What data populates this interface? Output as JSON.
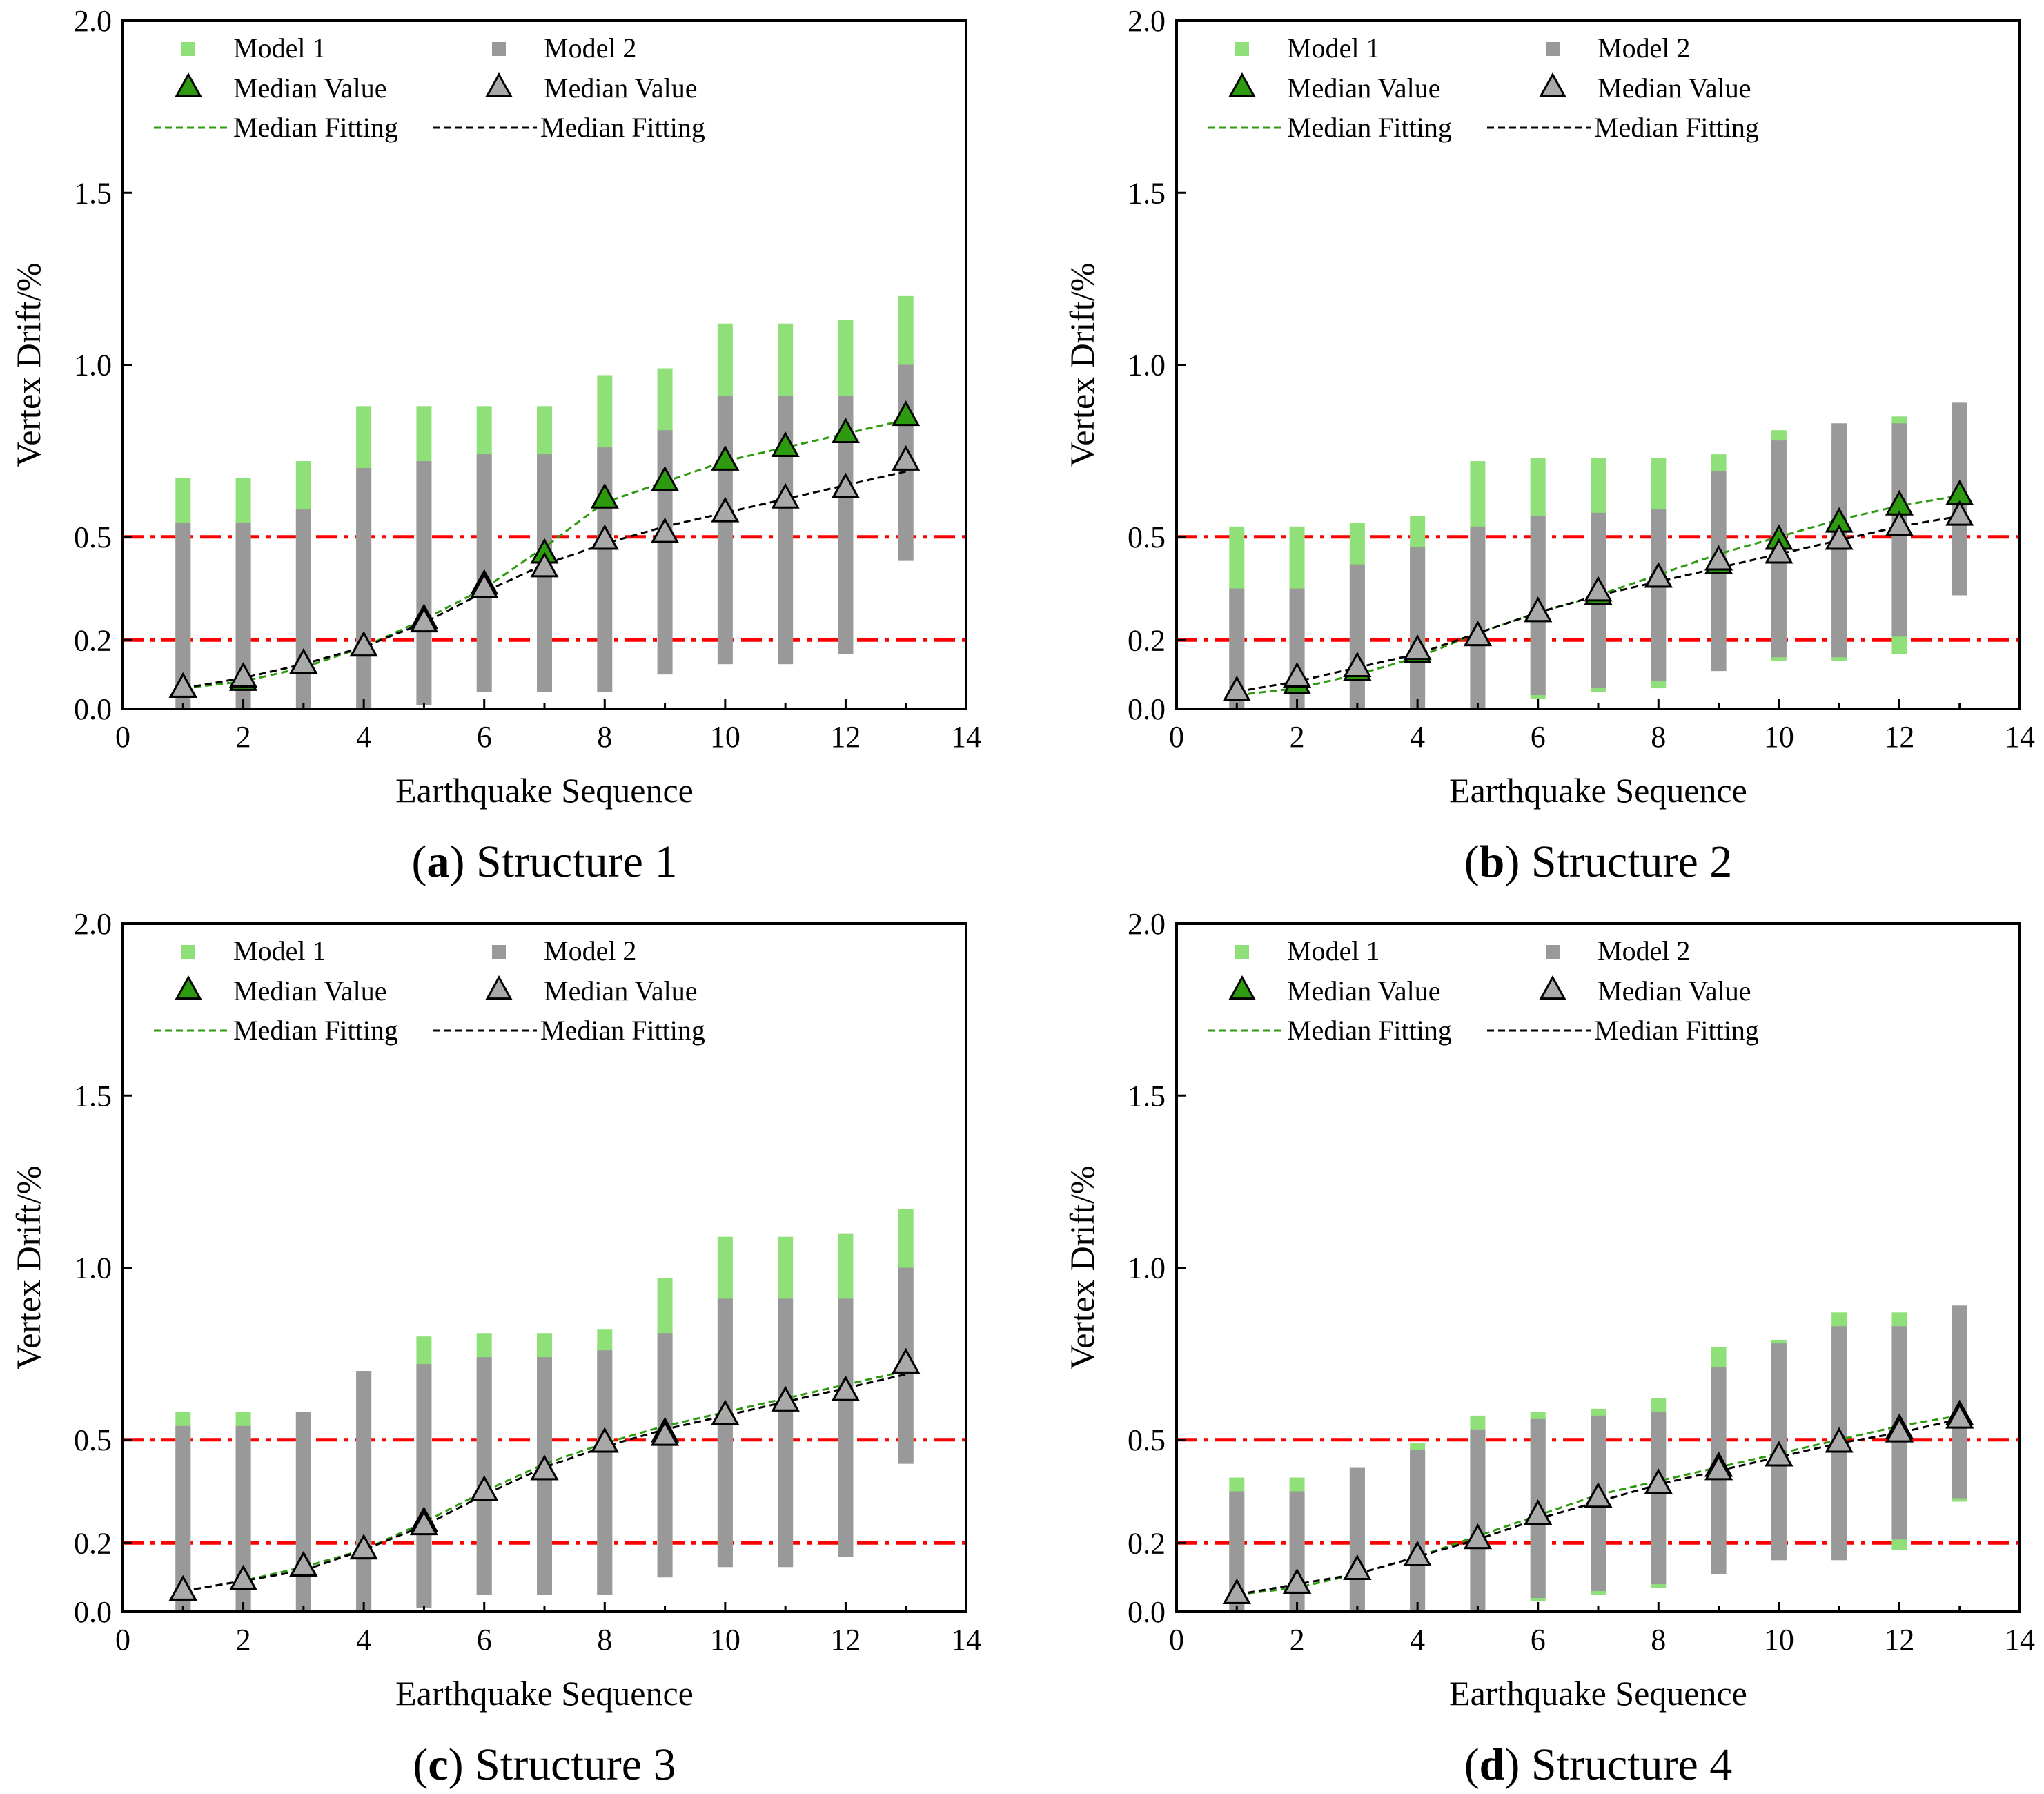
{
  "colors": {
    "model1": "#90E07A",
    "model2": "#999999",
    "median1_fill": "#2E9A10",
    "median2_fill": "#A9A9A9",
    "fit1": "#2E9A10",
    "fit2": "#000000",
    "limit_line": "#FF0000",
    "axis": "#000000"
  },
  "chart_data": [
    {
      "type": "scatter",
      "caption": {
        "letter": "a",
        "rest": " Structure 1",
        "open": "(",
        "close": ")"
      },
      "xlabel": "Earthquake Sequence",
      "ylabel": "Vertex Drift/%",
      "xlim": [
        0,
        14
      ],
      "ylim": [
        0,
        2.0
      ],
      "xticks": [
        "0",
        "2",
        "4",
        "6",
        "8",
        "10",
        "12",
        "14"
      ],
      "yticks": [
        "0.0",
        "0.2",
        "0.5",
        "1.0",
        "1.5",
        "2.0"
      ],
      "ytick_values": [
        0.0,
        0.2,
        0.5,
        1.0,
        1.5,
        2.0
      ],
      "reference_lines": [
        0.2,
        0.5
      ],
      "legend": {
        "model1": "Model 1",
        "model2": "Model 2",
        "median1": "Median Value",
        "median2": "Median Value",
        "fit1": "Median Fitting",
        "fit2": "Median Fitting"
      },
      "x": [
        1,
        2,
        3,
        4,
        5,
        6,
        7,
        8,
        9,
        10,
        11,
        12,
        13
      ],
      "model1_range": [
        [
          0.06,
          0.67
        ],
        [
          0.08,
          0.67
        ],
        [
          0.12,
          0.72
        ],
        [
          0.17,
          0.88
        ],
        [
          0.27,
          0.88
        ],
        [
          0.39,
          0.88
        ],
        [
          0.47,
          0.88
        ],
        [
          0.61,
          0.97
        ],
        [
          0.66,
          0.99
        ],
        [
          0.71,
          1.12
        ],
        [
          0.76,
          1.12
        ],
        [
          0.79,
          1.13
        ],
        [
          0.83,
          1.2
        ]
      ],
      "model2_range": [
        [
          0.0,
          0.54
        ],
        [
          0.0,
          0.54
        ],
        [
          0.0,
          0.58
        ],
        [
          0.0,
          0.7
        ],
        [
          0.01,
          0.72
        ],
        [
          0.05,
          0.74
        ],
        [
          0.05,
          0.74
        ],
        [
          0.05,
          0.76
        ],
        [
          0.1,
          0.81
        ],
        [
          0.13,
          0.91
        ],
        [
          0.13,
          0.91
        ],
        [
          0.16,
          0.91
        ],
        [
          0.43,
          1.0
        ]
      ],
      "model1_median": [
        0.06,
        0.08,
        0.13,
        0.18,
        0.26,
        0.36,
        0.45,
        0.61,
        0.66,
        0.72,
        0.76,
        0.8,
        0.85
      ],
      "model2_median": [
        0.06,
        0.09,
        0.13,
        0.18,
        0.25,
        0.35,
        0.41,
        0.49,
        0.51,
        0.57,
        0.61,
        0.64,
        0.72
      ],
      "fit1": [
        0.06,
        0.08,
        0.12,
        0.18,
        0.26,
        0.35,
        0.47,
        0.6,
        0.66,
        0.72,
        0.76,
        0.8,
        0.84
      ],
      "fit2": [
        0.06,
        0.09,
        0.13,
        0.18,
        0.25,
        0.34,
        0.42,
        0.48,
        0.53,
        0.57,
        0.61,
        0.65,
        0.69
      ]
    },
    {
      "type": "scatter",
      "caption": {
        "letter": "b",
        "rest": " Structure 2",
        "open": "(",
        "close": ")"
      },
      "xlabel": "Earthquake Sequence",
      "ylabel": "Vertex Drift/%",
      "xlim": [
        0,
        14
      ],
      "ylim": [
        0,
        2.0
      ],
      "xticks": [
        "0",
        "2",
        "4",
        "6",
        "8",
        "10",
        "12",
        "14"
      ],
      "yticks": [
        "0.0",
        "0.2",
        "0.5",
        "1.0",
        "1.5",
        "2.0"
      ],
      "ytick_values": [
        0.0,
        0.2,
        0.5,
        1.0,
        1.5,
        2.0
      ],
      "reference_lines": [
        0.2,
        0.5
      ],
      "legend": {
        "model1": "Model 1",
        "model2": "Model 2",
        "median1": "Median Value",
        "median2": "Median Value",
        "fit1": "Median Fitting",
        "fit2": "Median Fitting"
      },
      "x": [
        1,
        2,
        3,
        4,
        5,
        6,
        7,
        8,
        9,
        10,
        11,
        12,
        13
      ],
      "model1_range": [
        [
          0.0,
          0.53
        ],
        [
          0.0,
          0.53
        ],
        [
          0.0,
          0.54
        ],
        [
          0.02,
          0.56
        ],
        [
          0.02,
          0.72
        ],
        [
          0.03,
          0.73
        ],
        [
          0.05,
          0.73
        ],
        [
          0.06,
          0.73
        ],
        [
          0.12,
          0.74
        ],
        [
          0.14,
          0.81
        ],
        [
          0.14,
          0.79
        ],
        [
          0.16,
          0.85
        ],
        [
          0.33,
          0.88
        ]
      ],
      "model2_range": [
        [
          0.0,
          0.35
        ],
        [
          0.0,
          0.35
        ],
        [
          0.0,
          0.42
        ],
        [
          0.0,
          0.47
        ],
        [
          0.0,
          0.53
        ],
        [
          0.04,
          0.56
        ],
        [
          0.06,
          0.57
        ],
        [
          0.08,
          0.58
        ],
        [
          0.11,
          0.69
        ],
        [
          0.15,
          0.78
        ],
        [
          0.15,
          0.83
        ],
        [
          0.21,
          0.83
        ],
        [
          0.33,
          0.89
        ]
      ],
      "model1_median": [
        0.05,
        0.07,
        0.11,
        0.16,
        0.21,
        0.28,
        0.33,
        0.38,
        0.42,
        0.49,
        0.54,
        0.59,
        0.62
      ],
      "model2_median": [
        0.05,
        0.09,
        0.12,
        0.17,
        0.21,
        0.28,
        0.34,
        0.38,
        0.43,
        0.45,
        0.49,
        0.53,
        0.56
      ],
      "fit1": [
        0.04,
        0.06,
        0.1,
        0.15,
        0.22,
        0.28,
        0.33,
        0.39,
        0.45,
        0.5,
        0.55,
        0.59,
        0.62
      ],
      "fit2": [
        0.05,
        0.08,
        0.12,
        0.16,
        0.22,
        0.28,
        0.33,
        0.37,
        0.41,
        0.45,
        0.49,
        0.53,
        0.56
      ]
    },
    {
      "type": "scatter",
      "caption": {
        "letter": "c",
        "rest": " Structure 3",
        "open": "(",
        "close": ")"
      },
      "xlabel": "Earthquake Sequence",
      "ylabel": "Vertex Drift/%",
      "xlim": [
        0,
        14
      ],
      "ylim": [
        0,
        2.0
      ],
      "xticks": [
        "0",
        "2",
        "4",
        "6",
        "8",
        "10",
        "12",
        "14"
      ],
      "yticks": [
        "0.0",
        "0.2",
        "0.5",
        "1.0",
        "1.5",
        "2.0"
      ],
      "ytick_values": [
        0.0,
        0.2,
        0.5,
        1.0,
        1.5,
        2.0
      ],
      "reference_lines": [
        0.2,
        0.5
      ],
      "legend": {
        "model1": "Model 1",
        "model2": "Model 2",
        "median1": "Median Value",
        "median2": "Median Value",
        "fit1": "Median Fitting",
        "fit2": "Median Fitting"
      },
      "x": [
        1,
        2,
        3,
        4,
        5,
        6,
        7,
        8,
        9,
        10,
        11,
        12,
        13
      ],
      "model1_range": [
        [
          0.0,
          0.58
        ],
        [
          0.0,
          0.58
        ],
        [
          0.0,
          0.58
        ],
        [
          0.0,
          0.7
        ],
        [
          0.02,
          0.8
        ],
        [
          0.05,
          0.81
        ],
        [
          0.05,
          0.81
        ],
        [
          0.05,
          0.82
        ],
        [
          0.1,
          0.97
        ],
        [
          0.13,
          1.09
        ],
        [
          0.13,
          1.09
        ],
        [
          0.17,
          1.1
        ],
        [
          0.44,
          1.17
        ]
      ],
      "model2_range": [
        [
          0.0,
          0.54
        ],
        [
          0.0,
          0.54
        ],
        [
          0.0,
          0.58
        ],
        [
          0.0,
          0.7
        ],
        [
          0.01,
          0.72
        ],
        [
          0.05,
          0.74
        ],
        [
          0.05,
          0.74
        ],
        [
          0.05,
          0.76
        ],
        [
          0.1,
          0.81
        ],
        [
          0.13,
          0.91
        ],
        [
          0.13,
          0.91
        ],
        [
          0.16,
          0.91
        ],
        [
          0.43,
          1.0
        ]
      ],
      "model1_median": [
        0.06,
        0.09,
        0.13,
        0.18,
        0.26,
        0.35,
        0.41,
        0.49,
        0.52,
        0.57,
        0.61,
        0.64,
        0.72
      ],
      "model2_median": [
        0.06,
        0.09,
        0.13,
        0.18,
        0.25,
        0.35,
        0.41,
        0.49,
        0.51,
        0.57,
        0.61,
        0.64,
        0.72
      ],
      "fit1": [
        0.06,
        0.09,
        0.13,
        0.18,
        0.26,
        0.35,
        0.43,
        0.49,
        0.54,
        0.58,
        0.62,
        0.66,
        0.7
      ],
      "fit2": [
        0.06,
        0.09,
        0.12,
        0.18,
        0.25,
        0.34,
        0.42,
        0.48,
        0.53,
        0.57,
        0.61,
        0.65,
        0.69
      ]
    },
    {
      "type": "scatter",
      "caption": {
        "letter": "d",
        "rest": " Structure 4",
        "open": "(",
        "close": ")"
      },
      "xlabel": "Earthquake Sequence",
      "ylabel": "Vertex Drift/%",
      "xlim": [
        0,
        14
      ],
      "ylim": [
        0,
        2.0
      ],
      "xticks": [
        "0",
        "2",
        "4",
        "6",
        "8",
        "10",
        "12",
        "14"
      ],
      "yticks": [
        "0.0",
        "0.2",
        "0.5",
        "1.0",
        "1.5",
        "2.0"
      ],
      "ytick_values": [
        0.0,
        0.2,
        0.5,
        1.0,
        1.5,
        2.0
      ],
      "reference_lines": [
        0.2,
        0.5
      ],
      "legend": {
        "model1": "Model 1",
        "model2": "Model 2",
        "median1": "Median Value",
        "median2": "Median Value",
        "fit1": "Median Fitting",
        "fit2": "Median Fitting"
      },
      "x": [
        1,
        2,
        3,
        4,
        5,
        6,
        7,
        8,
        9,
        10,
        11,
        12,
        13
      ],
      "model1_range": [
        [
          0.0,
          0.39
        ],
        [
          0.0,
          0.39
        ],
        [
          0.0,
          0.42
        ],
        [
          0.02,
          0.49
        ],
        [
          0.02,
          0.57
        ],
        [
          0.03,
          0.58
        ],
        [
          0.05,
          0.59
        ],
        [
          0.07,
          0.62
        ],
        [
          0.12,
          0.77
        ],
        [
          0.15,
          0.79
        ],
        [
          0.15,
          0.87
        ],
        [
          0.18,
          0.87
        ],
        [
          0.32,
          0.89
        ]
      ],
      "model2_range": [
        [
          0.0,
          0.35
        ],
        [
          0.0,
          0.35
        ],
        [
          0.0,
          0.42
        ],
        [
          0.0,
          0.47
        ],
        [
          0.0,
          0.53
        ],
        [
          0.04,
          0.56
        ],
        [
          0.06,
          0.57
        ],
        [
          0.08,
          0.58
        ],
        [
          0.11,
          0.71
        ],
        [
          0.15,
          0.78
        ],
        [
          0.15,
          0.83
        ],
        [
          0.21,
          0.83
        ],
        [
          0.33,
          0.89
        ]
      ],
      "model1_median": [
        0.05,
        0.08,
        0.12,
        0.16,
        0.21,
        0.28,
        0.33,
        0.37,
        0.42,
        0.45,
        0.49,
        0.53,
        0.57
      ],
      "model2_median": [
        0.05,
        0.08,
        0.12,
        0.16,
        0.21,
        0.28,
        0.33,
        0.37,
        0.41,
        0.45,
        0.49,
        0.52,
        0.56
      ],
      "fit1": [
        0.05,
        0.07,
        0.11,
        0.16,
        0.22,
        0.28,
        0.34,
        0.38,
        0.42,
        0.46,
        0.5,
        0.54,
        0.57
      ],
      "fit2": [
        0.05,
        0.08,
        0.11,
        0.16,
        0.21,
        0.27,
        0.32,
        0.37,
        0.41,
        0.45,
        0.49,
        0.52,
        0.56
      ]
    }
  ]
}
